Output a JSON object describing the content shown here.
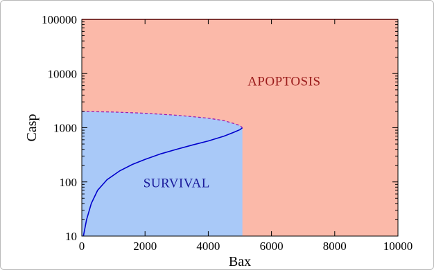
{
  "chart_data": {
    "type": "area",
    "xlabel": "Bax",
    "ylabel": "Casp",
    "xlim": [
      0,
      10000
    ],
    "ylim": [
      10,
      100000
    ],
    "y_scale": "log",
    "grid": false,
    "x_ticks": [
      "0",
      "2000",
      "4000",
      "6000",
      "8000",
      "10000"
    ],
    "y_ticks": [
      "10",
      "100",
      "1000",
      "10000",
      "100000"
    ],
    "regions": [
      {
        "name": "APOPTOSIS",
        "color": "#fbb9a9",
        "label_color": "#9b1c1c",
        "label_at": {
          "x": 6400,
          "y": 6000
        }
      },
      {
        "name": "SURVIVAL",
        "color": "#a9c9f8",
        "label_color": "#1a1a9b",
        "label_at": {
          "x": 3000,
          "y": 80
        }
      }
    ],
    "series": [
      {
        "style": "solid",
        "color": "#ff0000",
        "x": [
          0,
          10000
        ],
        "y": [
          100000,
          100000
        ]
      },
      {
        "style": "solid",
        "color": "#0000cc",
        "x": [
          50,
          150,
          300,
          500,
          800,
          1200,
          1600,
          2000,
          2500,
          3000,
          3500,
          4000,
          4500,
          4800,
          5000,
          5080
        ],
        "y": [
          10,
          20,
          40,
          70,
          110,
          160,
          210,
          260,
          330,
          400,
          480,
          570,
          700,
          820,
          920,
          1000
        ]
      },
      {
        "style": "dashed",
        "color": "#9b1cb0",
        "x": [
          0,
          1000,
          2000,
          3000,
          3500,
          4000,
          4500,
          4800,
          5000,
          5080
        ],
        "y": [
          2000,
          1950,
          1850,
          1700,
          1600,
          1500,
          1350,
          1200,
          1100,
          1000
        ]
      }
    ],
    "survival_boundary_x": 5080
  }
}
